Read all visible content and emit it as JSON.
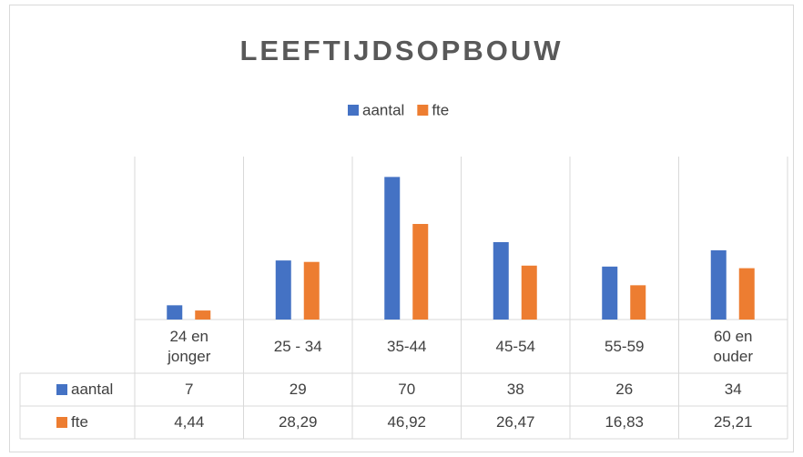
{
  "chart_data": {
    "type": "bar",
    "title": "LEEFTIJDSOPBOUW",
    "categories": [
      "24 en jonger",
      "25 - 34",
      "35-44",
      "45-54",
      "55-59",
      "60 en ouder"
    ],
    "series": [
      {
        "name": "aantal",
        "color": "#4472c4",
        "values": [
          7,
          29,
          70,
          38,
          26,
          34
        ]
      },
      {
        "name": "fte",
        "color": "#ed7d31",
        "values": [
          4.44,
          28.29,
          46.92,
          26.47,
          16.83,
          25.21
        ],
        "value_labels": [
          "4,44",
          "28,29",
          "46,92",
          "26,47",
          "16,83",
          "25,21"
        ]
      }
    ],
    "ylim": [
      0,
      80
    ],
    "legend": "top",
    "data_table": true
  }
}
